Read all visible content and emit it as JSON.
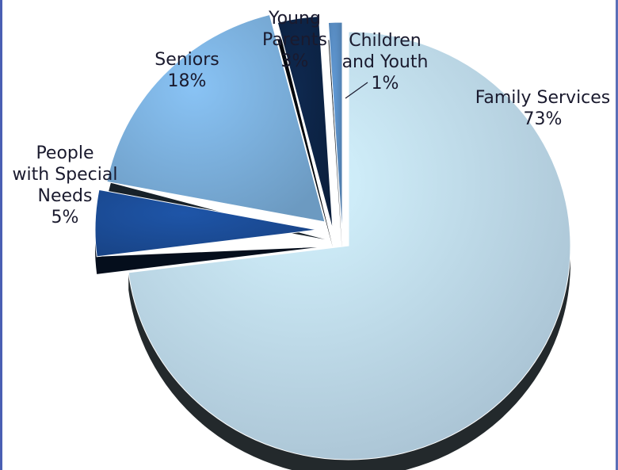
{
  "chart_data": {
    "type": "pie",
    "title": "",
    "slices": [
      {
        "label_lines": [
          "Family Services"
        ],
        "value_label": "73%",
        "value": 73,
        "color": "#c5e2f6"
      },
      {
        "label_lines": [
          "People",
          "with Special",
          "Needs"
        ],
        "value_label": "5%",
        "value": 5,
        "color": "#1c4f9c"
      },
      {
        "label_lines": [
          "Seniors"
        ],
        "value_label": "18%",
        "value": 18,
        "color": "#7fb5e3"
      },
      {
        "label_lines": [
          "Young",
          "Parents"
        ],
        "value_label": "3%",
        "value": 3,
        "color": "#0d2548"
      },
      {
        "label_lines": [
          "Children",
          "and Youth"
        ],
        "value_label": "1%",
        "value": 1,
        "color": "#5a8fc6"
      }
    ],
    "legend": "none",
    "style": "3d-exploded"
  }
}
